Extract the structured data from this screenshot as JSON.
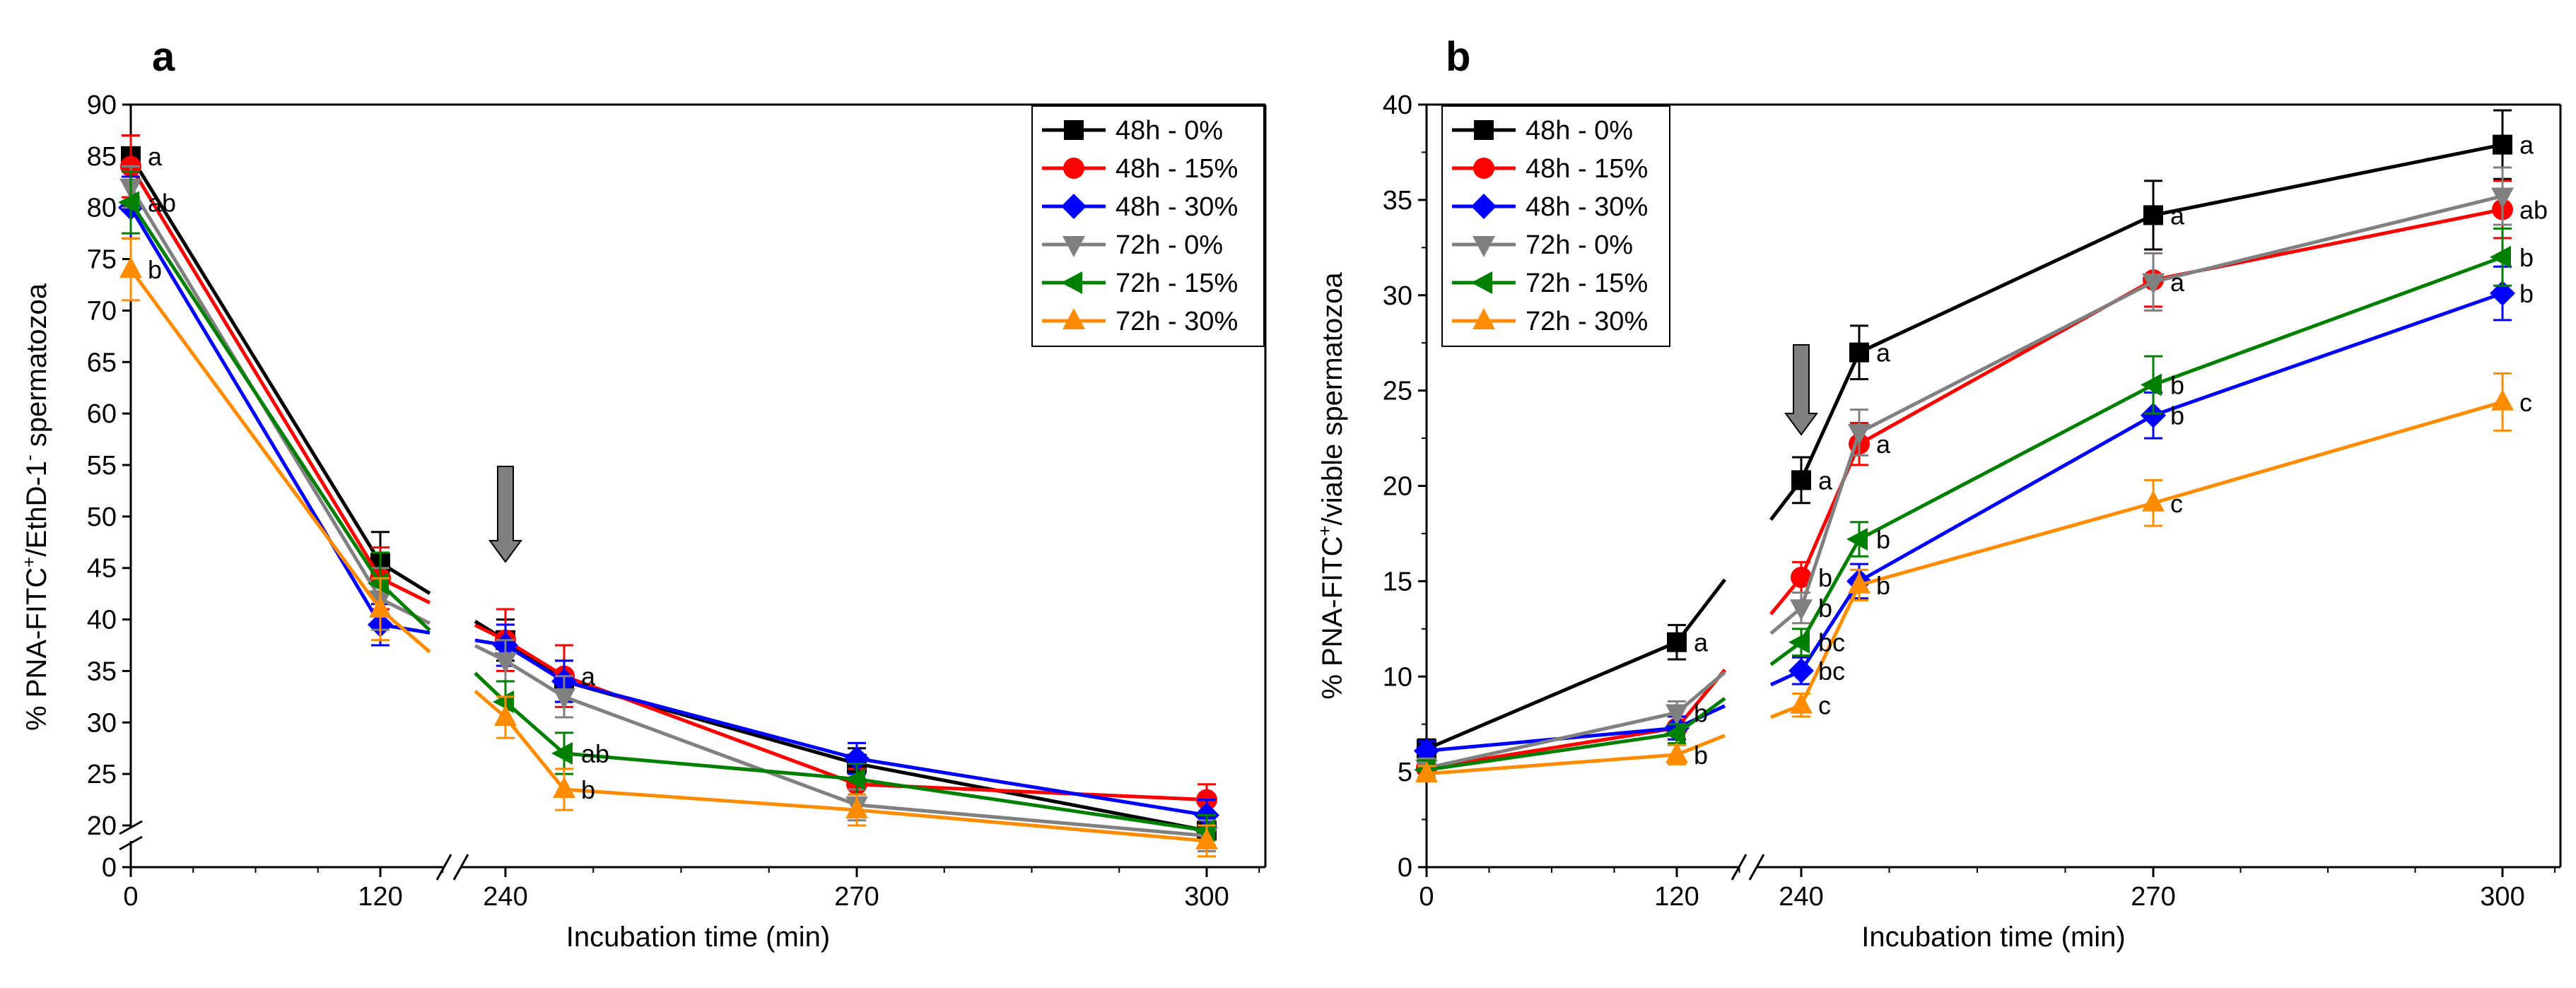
{
  "chart_data": [
    {
      "panel": "a",
      "type": "line",
      "xlabel": "Incubation time (min)",
      "ylabel_parts": [
        "% PNA-FITC",
        "+",
        "/EthD-1",
        "-",
        " spermatozoa"
      ],
      "x_ticks": [
        0,
        120,
        240,
        270,
        300
      ],
      "y_ticks": [
        0,
        20,
        25,
        30,
        35,
        40,
        45,
        50,
        55,
        60,
        65,
        70,
        75,
        80,
        85,
        90
      ],
      "ylim": [
        0,
        90
      ],
      "axis_break": true,
      "arrow_at_x": 240,
      "x": [
        0,
        120,
        240,
        255,
        270,
        300
      ],
      "series": [
        {
          "name": "48h - 0%",
          "color": "#000000",
          "marker": "square",
          "values": [
            85,
            45.5,
            38,
            34,
            26,
            19.5
          ],
          "errors": [
            2,
            3,
            2,
            2,
            1.5,
            1.5
          ]
        },
        {
          "name": "48h - 15%",
          "color": "#ff0000",
          "marker": "circle",
          "values": [
            84,
            44,
            38,
            34.5,
            24,
            22.5
          ],
          "errors": [
            3,
            3,
            3,
            3,
            1.5,
            1.5
          ]
        },
        {
          "name": "48h - 30%",
          "color": "#0000ff",
          "marker": "diamond",
          "values": [
            80,
            39.5,
            37.5,
            34,
            26.5,
            21
          ],
          "errors": [
            3,
            2,
            2,
            2,
            1.5,
            1.5
          ]
        },
        {
          "name": "72h - 0%",
          "color": "#808080",
          "marker": "triangle-down",
          "values": [
            82,
            42,
            36,
            32.5,
            22,
            19
          ],
          "errors": [
            2,
            3,
            2,
            2,
            1.5,
            1.5
          ]
        },
        {
          "name": "72h - 15%",
          "color": "#008000",
          "marker": "triangle-left",
          "values": [
            80.5,
            43.5,
            32,
            27,
            24.5,
            19.5
          ],
          "errors": [
            3,
            3,
            2,
            2,
            1.5,
            1.5
          ]
        },
        {
          "name": "72h - 30%",
          "color": "#ff8c00",
          "marker": "triangle-up",
          "values": [
            74,
            41,
            30.5,
            23.5,
            21.5,
            18.5
          ],
          "errors": [
            3,
            3,
            2,
            2,
            1.5,
            1.5
          ]
        }
      ],
      "annotations": [
        {
          "text": "a",
          "x": 0,
          "y": 85
        },
        {
          "text": "ab",
          "x": 0,
          "y": 80.5
        },
        {
          "text": "b",
          "x": 0,
          "y": 74
        },
        {
          "text": "a",
          "x": 255,
          "y": 34.5
        },
        {
          "text": "ab",
          "x": 255,
          "y": 27
        },
        {
          "text": "b",
          "x": 255,
          "y": 23.5
        }
      ]
    },
    {
      "panel": "b",
      "type": "line",
      "xlabel": "Incubation time (min)",
      "ylabel_parts": [
        "% PNA-FITC",
        "+",
        "/viable spermatozoa",
        "",
        ""
      ],
      "x_ticks": [
        0,
        120,
        240,
        270,
        300
      ],
      "y_ticks": [
        0,
        5,
        10,
        15,
        20,
        25,
        30,
        35,
        40
      ],
      "ylim": [
        0,
        40
      ],
      "axis_break": true,
      "arrow_at_x": 240,
      "x": [
        0,
        120,
        240,
        255,
        270,
        300
      ],
      "series": [
        {
          "name": "48h - 0%",
          "color": "#000000",
          "marker": "square",
          "values": [
            6.2,
            11.8,
            20.3,
            27,
            34.2,
            37.9
          ],
          "errors": [
            0.5,
            0.9,
            1.2,
            1.4,
            1.8,
            1.8
          ]
        },
        {
          "name": "48h - 15%",
          "color": "#ff0000",
          "marker": "circle",
          "values": [
            5.2,
            7.3,
            15.2,
            22.2,
            30.8,
            34.5
          ],
          "errors": [
            0.5,
            0.6,
            0.8,
            1.1,
            1.4,
            1.5
          ]
        },
        {
          "name": "48h - 30%",
          "color": "#0000ff",
          "marker": "diamond",
          "values": [
            6.1,
            7.3,
            10.3,
            15,
            23.7,
            30.1
          ],
          "errors": [
            0.5,
            0.6,
            0.7,
            0.9,
            1.2,
            1.4
          ]
        },
        {
          "name": "72h - 0%",
          "color": "#808080",
          "marker": "triangle-down",
          "values": [
            5.2,
            8.1,
            13.6,
            22.8,
            30.7,
            35.2
          ],
          "errors": [
            0.5,
            0.6,
            0.8,
            1.2,
            1.5,
            1.5
          ]
        },
        {
          "name": "72h - 15%",
          "color": "#008000",
          "marker": "triangle-left",
          "values": [
            5.1,
            7,
            11.8,
            17.2,
            25.3,
            32
          ],
          "errors": [
            0.5,
            0.5,
            0.7,
            0.9,
            1.5,
            1.5
          ]
        },
        {
          "name": "72h - 30%",
          "color": "#ff8c00",
          "marker": "triangle-up",
          "values": [
            4.9,
            5.9,
            8.5,
            14.8,
            19.1,
            24.4
          ],
          "errors": [
            0.4,
            0.5,
            0.6,
            0.8,
            1.2,
            1.5
          ]
        }
      ],
      "annotations": [
        {
          "text": "a",
          "x": 120,
          "y": 11.8
        },
        {
          "text": "b",
          "x": 120,
          "y": 8.1
        },
        {
          "text": "b",
          "x": 120,
          "y": 5.9
        },
        {
          "text": "a",
          "x": 240,
          "y": 20.3
        },
        {
          "text": "b",
          "x": 240,
          "y": 15.2
        },
        {
          "text": "b",
          "x": 240,
          "y": 13.6
        },
        {
          "text": "bc",
          "x": 240,
          "y": 11.8
        },
        {
          "text": "bc",
          "x": 240,
          "y": 10.3
        },
        {
          "text": "c",
          "x": 240,
          "y": 8.5
        },
        {
          "text": "a",
          "x": 255,
          "y": 27
        },
        {
          "text": "a",
          "x": 255,
          "y": 22.2
        },
        {
          "text": "b",
          "x": 255,
          "y": 17.2
        },
        {
          "text": "b",
          "x": 255,
          "y": 14.8
        },
        {
          "text": "a",
          "x": 270,
          "y": 34.2
        },
        {
          "text": "a",
          "x": 270,
          "y": 30.7
        },
        {
          "text": "b",
          "x": 270,
          "y": 25.3
        },
        {
          "text": "b",
          "x": 270,
          "y": 23.7
        },
        {
          "text": "c",
          "x": 270,
          "y": 19.1
        },
        {
          "text": "a",
          "x": 300,
          "y": 37.9
        },
        {
          "text": "ab",
          "x": 300,
          "y": 34.5
        },
        {
          "text": "b",
          "x": 300,
          "y": 32
        },
        {
          "text": "b",
          "x": 300,
          "y": 30.1
        },
        {
          "text": "c",
          "x": 300,
          "y": 24.4
        }
      ]
    }
  ]
}
